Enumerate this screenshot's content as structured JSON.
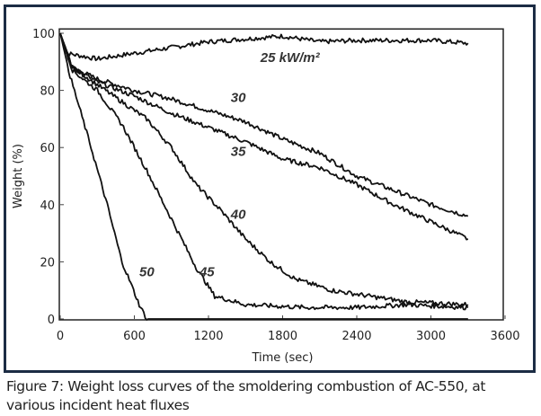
{
  "caption": "Figure 7: Weight loss curves of the smoldering combustion of AC-550, at various incident heat fluxes",
  "chart_data": {
    "type": "line",
    "title": "",
    "xlabel": "Time (sec)",
    "ylabel": "Weight (%)",
    "xlim": [
      0,
      3600
    ],
    "ylim": [
      0,
      101.5
    ],
    "xticks": [
      0,
      600,
      1200,
      1800,
      2400,
      3000,
      3600
    ],
    "yticks": [
      0,
      20,
      40,
      60,
      80,
      100
    ],
    "grid": false,
    "line_color": "#111111",
    "series": [
      {
        "name": "25 kW/m²",
        "label_at": [
          1620,
          90
        ],
        "x": [
          0,
          50,
          300,
          600,
          900,
          1200,
          1500,
          1800,
          2100,
          2400,
          3000,
          3300
        ],
        "y": [
          100,
          93,
          91,
          93,
          95,
          97,
          98,
          99,
          97,
          97.5,
          97.5,
          96.5
        ]
      },
      {
        "name": "30",
        "label_at": [
          1380,
          76
        ],
        "x": [
          0,
          100,
          300,
          600,
          900,
          1200,
          1500,
          1800,
          2100,
          2400,
          2700,
          3000,
          3300
        ],
        "y": [
          100,
          88,
          84,
          80,
          77,
          73,
          69,
          63,
          58,
          50,
          45,
          40,
          36
        ]
      },
      {
        "name": "35",
        "label_at": [
          1380,
          57
        ],
        "x": [
          0,
          100,
          300,
          600,
          900,
          1200,
          1500,
          1800,
          2100,
          2400,
          2700,
          3000,
          3300
        ],
        "y": [
          100,
          88,
          83,
          78,
          72,
          67,
          62,
          56,
          53,
          47,
          40,
          34,
          28
        ]
      },
      {
        "name": "40",
        "label_at": [
          1380,
          35
        ],
        "x": [
          0,
          100,
          300,
          500,
          700,
          900,
          1100,
          1300,
          1500,
          1700,
          1900,
          2200,
          2500,
          2800,
          3300
        ],
        "y": [
          100,
          88,
          82,
          76,
          70,
          60,
          47,
          38,
          28,
          20,
          14,
          10,
          8,
          6,
          5
        ]
      },
      {
        "name": "45",
        "label_at": [
          1127,
          15
        ],
        "x": [
          0,
          100,
          300,
          500,
          700,
          900,
          1100,
          1250,
          1500,
          2000,
          2400,
          2800,
          3300
        ],
        "y": [
          100,
          87,
          80,
          68,
          52,
          35,
          18,
          8,
          5,
          4,
          4,
          5,
          4
        ]
      },
      {
        "name": "50",
        "label_at": [
          640,
          15
        ],
        "x": [
          0,
          80,
          250,
          380,
          500,
          640,
          700,
          3300
        ],
        "y": [
          100,
          85,
          60,
          40,
          20,
          5,
          0,
          0
        ]
      }
    ]
  }
}
